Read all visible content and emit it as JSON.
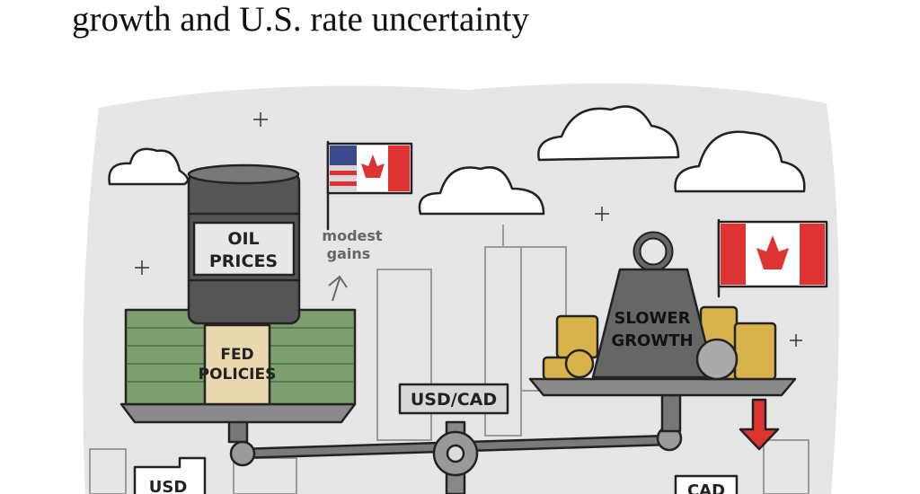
{
  "headline": "growth and U.S. rate uncertainty",
  "illustration": {
    "barrel_label": [
      "OIL",
      "PRICES"
    ],
    "money_label": [
      "FED",
      "POLICIES"
    ],
    "note": [
      "modest",
      "gains"
    ],
    "scale_label": "USD/CAD",
    "weight_label": [
      "SLOWER",
      "GROWTH"
    ],
    "left_building": "USD",
    "right_building": "CAD"
  }
}
